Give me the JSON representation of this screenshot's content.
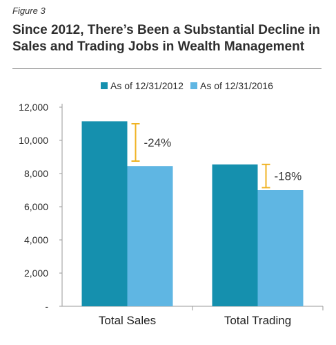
{
  "figure_label": "Figure 3",
  "colors": {
    "series_2012": "#1590ae",
    "series_2016": "#5fb6e3",
    "change_marker": "#f0b323",
    "axis": "#9a9a9a"
  },
  "chart_data": {
    "type": "bar",
    "title": "Since 2012, There’s Been a Substantial Decline in Sales and Trading Jobs in Wealth Management",
    "categories": [
      "Total Sales",
      "Total Trading"
    ],
    "series": [
      {
        "name": "As of 12/31/2012",
        "values": [
          11150,
          8550
        ]
      },
      {
        "name": "As of 12/31/2016",
        "values": [
          8450,
          7000
        ]
      }
    ],
    "annotations": [
      {
        "category": "Total Sales",
        "text": "-24%",
        "from": 11000,
        "to": 8750
      },
      {
        "category": "Total Trading",
        "text": "-18%",
        "from": 8550,
        "to": 7150
      }
    ],
    "yticks": [
      "-",
      "2,000",
      "4,000",
      "6,000",
      "8,000",
      "10,000",
      "12,000"
    ],
    "ylim": [
      0,
      12000
    ],
    "xlabel": "",
    "ylabel": "",
    "grid": false,
    "legend": "top-right"
  }
}
